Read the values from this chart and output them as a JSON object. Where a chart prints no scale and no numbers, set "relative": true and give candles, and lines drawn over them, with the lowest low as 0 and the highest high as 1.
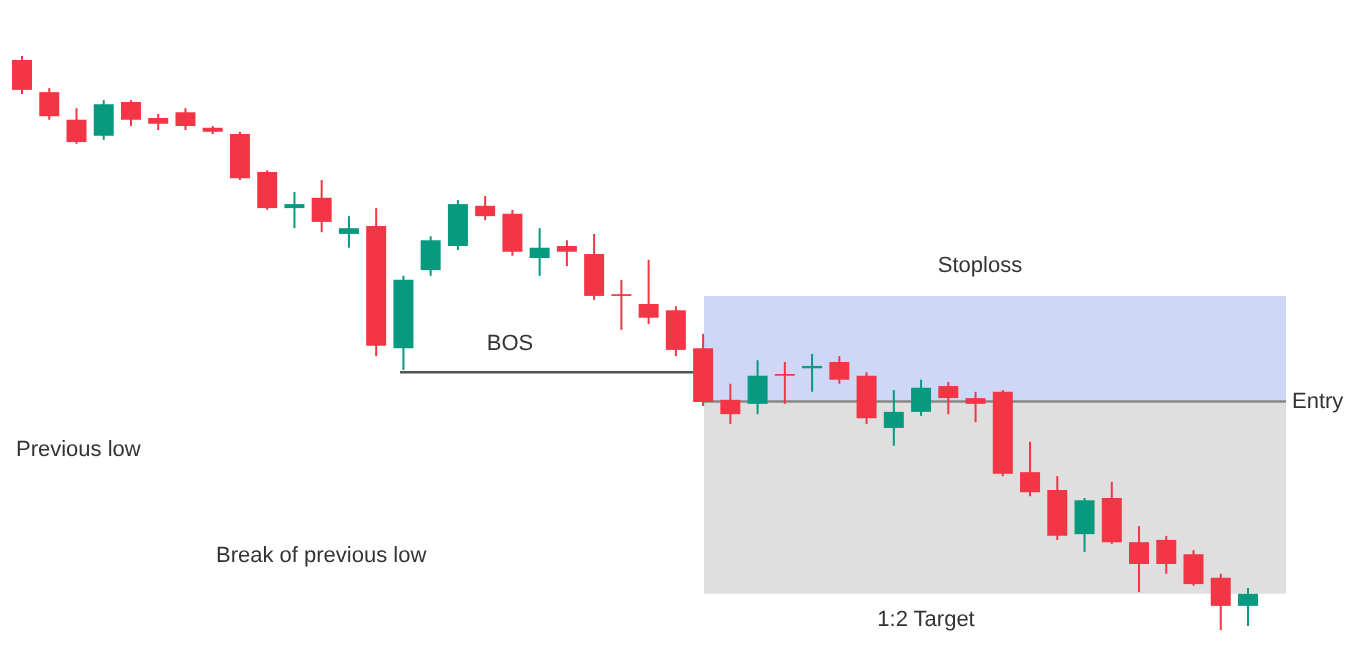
{
  "chart_data": {
    "type": "candlestick",
    "relative": true,
    "categories": [
      null,
      null,
      null,
      null,
      null,
      null,
      null,
      null,
      null,
      null,
      null,
      null,
      null,
      null,
      null,
      null,
      null,
      null,
      null,
      null,
      null,
      null,
      null,
      null,
      null,
      null,
      null,
      null,
      null,
      null,
      null,
      null,
      null,
      null,
      null,
      null,
      null,
      null,
      null,
      null,
      null,
      null,
      null,
      null,
      null,
      null
    ],
    "ohlc": [
      [
        0.993,
        1,
        0.934,
        0.941
      ],
      [
        0.937,
        0.944,
        0.889,
        0.895
      ],
      [
        0.889,
        0.909,
        0.847,
        0.85
      ],
      [
        0.861,
        0.923,
        0.854,
        0.916
      ],
      [
        0.92,
        0.923,
        0.878,
        0.889
      ],
      [
        0.892,
        0.899,
        0.871,
        0.882
      ],
      [
        0.902,
        0.909,
        0.871,
        0.878
      ],
      [
        0.875,
        0.878,
        0.864,
        0.868
      ],
      [
        0.864,
        0.868,
        0.784,
        0.787
      ],
      [
        0.798,
        0.801,
        0.732,
        0.735
      ],
      [
        0.735,
        0.763,
        0.7,
        0.742
      ],
      [
        0.753,
        0.784,
        0.693,
        0.711
      ],
      [
        0.69,
        0.721,
        0.666,
        0.7
      ],
      [
        0.704,
        0.735,
        0.477,
        0.495
      ],
      [
        0.491,
        0.617,
        0.453,
        0.61
      ],
      [
        0.627,
        0.686,
        0.617,
        0.679
      ],
      [
        0.669,
        0.749,
        0.662,
        0.742
      ],
      [
        0.739,
        0.756,
        0.714,
        0.721
      ],
      [
        0.725,
        0.732,
        0.652,
        0.659
      ],
      [
        0.648,
        0.7,
        0.617,
        0.666
      ],
      [
        0.669,
        0.679,
        0.634,
        0.659
      ],
      [
        0.655,
        0.69,
        0.575,
        0.582
      ],
      [
        0.585,
        0.61,
        0.523,
        0.582
      ],
      [
        0.568,
        0.645,
        0.533,
        0.544
      ],
      [
        0.557,
        0.564,
        0.477,
        0.488
      ],
      [
        0.491,
        0.516,
        0.39,
        0.397
      ],
      [
        0.401,
        0.429,
        0.359,
        0.376
      ],
      [
        0.394,
        0.47,
        0.376,
        0.443
      ],
      [
        0.446,
        0.467,
        0.394,
        0.443
      ],
      [
        0.456,
        0.481,
        0.415,
        0.46
      ],
      [
        0.467,
        0.477,
        0.429,
        0.436
      ],
      [
        0.443,
        0.449,
        0.359,
        0.369
      ],
      [
        0.352,
        0.418,
        0.321,
        0.38
      ],
      [
        0.38,
        0.436,
        0.373,
        0.422
      ],
      [
        0.425,
        0.432,
        0.376,
        0.404
      ],
      [
        0.404,
        0.415,
        0.362,
        0.394
      ],
      [
        0.415,
        0.418,
        0.268,
        0.272
      ],
      [
        0.275,
        0.328,
        0.233,
        0.24
      ],
      [
        0.244,
        0.268,
        0.157,
        0.164
      ],
      [
        0.167,
        0.23,
        0.136,
        0.226
      ],
      [
        0.23,
        0.258,
        0.15,
        0.153
      ],
      [
        0.153,
        0.181,
        0.066,
        0.115
      ],
      [
        0.157,
        0.164,
        0.098,
        0.115
      ],
      [
        0.132,
        0.139,
        0.077,
        0.08
      ],
      [
        0.091,
        0.098,
        0,
        0.042
      ],
      [
        0.042,
        0.073,
        0.007,
        0.063
      ]
    ],
    "colors": [
      "#f23645",
      "#f23645",
      "#f23645",
      "#089981",
      "#f23645",
      "#f23645",
      "#f23645",
      "#f23645",
      "#f23645",
      "#f23645",
      "#089981",
      "#f23645",
      "#089981",
      "#f23645",
      "#089981",
      "#089981",
      "#089981",
      "#f23645",
      "#f23645",
      "#089981",
      "#f23645",
      "#f23645",
      "#f23645",
      "#f23645",
      "#f23645",
      "#f23645",
      "#f23645",
      "#089981",
      "#f23645",
      "#089981",
      "#f23645",
      "#f23645",
      "#089981",
      "#089981",
      "#f23645",
      "#f23645",
      "#f23645",
      "#f23645",
      "#f23645",
      "#089981",
      "#f23645",
      "#f23645",
      "#f23645",
      "#f23645",
      "#f23645",
      "#089981"
    ],
    "bands": [
      {
        "axis": "y",
        "from": 0.398,
        "to": 0.582,
        "label": "Stoploss",
        "color": "#c9d4f5"
      },
      {
        "axis": "y",
        "from": 0.063,
        "to": 0.398,
        "label": "1:2 Target",
        "color": "#dcdcdc"
      }
    ],
    "ref_lines": [
      {
        "axis": "y",
        "value": 0.449,
        "label": "BOS",
        "color": "#555555"
      },
      {
        "axis": "y",
        "value": 0.398,
        "label": "Entry",
        "color": "#888888"
      }
    ],
    "annotations": [
      "Previous low",
      "Break of previous low"
    ]
  }
}
